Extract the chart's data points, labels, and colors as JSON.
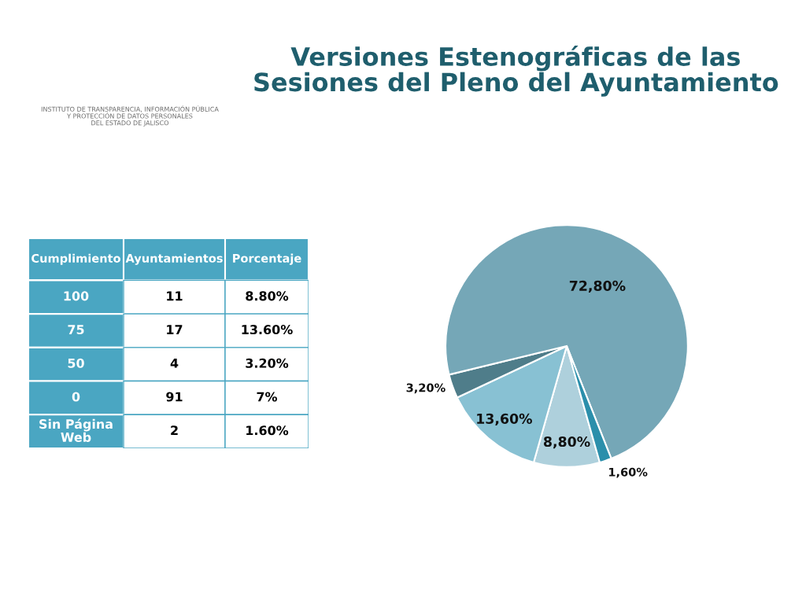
{
  "chart_data": [
    {
      "type": "other",
      "xlabel": "Cumplimiento",
      "categories": [
        "100",
        "75",
        "50",
        "0",
        "Sin Página Web"
      ],
      "series": [
        {
          "name": "Ayuntamientos",
          "values": [
            11,
            17,
            4,
            91,
            2
          ]
        }
      ],
      "data_labels": true,
      "color": "#4aa6c2",
      "annotations": [
        "Porcentaje",
        "8.80%",
        "13.60%",
        "3.20%",
        "7%",
        "1.60%"
      ]
    },
    {
      "type": "pie",
      "title": "Versiones Estenográficas de las Sesiones del Pleno del Ayuntamiento",
      "categories": [
        null,
        null,
        null,
        null,
        null
      ],
      "values": [
        8.8,
        13.6,
        3.2,
        72.8,
        1.6
      ],
      "colors": [
        "#aed0dc",
        "#88c1d3",
        "#4f7d8a",
        "#75a7b7",
        "#2b8fab"
      ],
      "value_labels": [
        "8,80%",
        "13,60%",
        "3,20%",
        "72,80%",
        "1,60%"
      ],
      "annotations": [
        "INSTITUTO DE TRANSPARENCIA, INFORMACIÓN PÚBLICA\nY PROTECCIÓN DE DATOS PERSONALES\nDEL ESTADO DE JALISCO"
      ]
    }
  ]
}
